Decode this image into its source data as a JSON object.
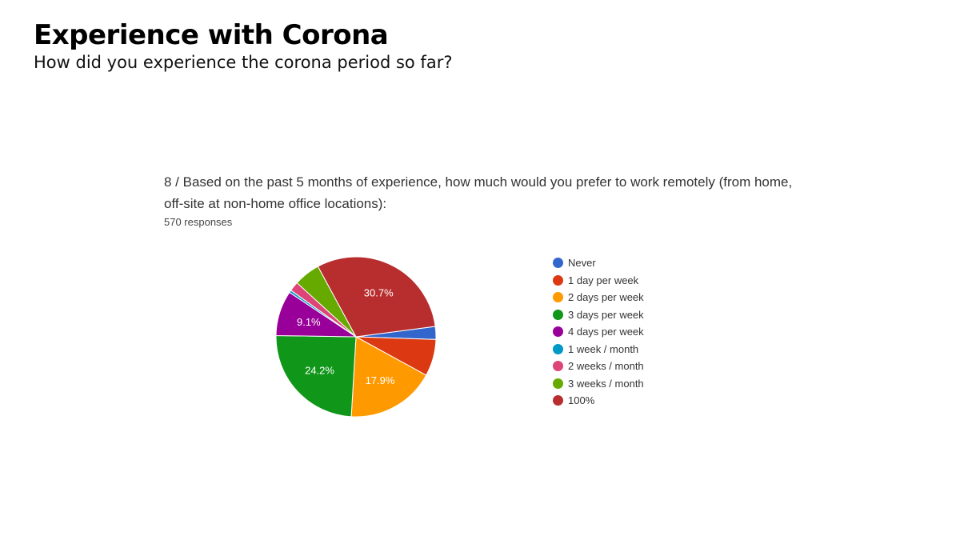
{
  "slide": {
    "title": "Experience with Corona",
    "subtitle": "How did you experience the corona period so far?"
  },
  "form": {
    "question": "8 / Based on the past 5 months of experience, how much would you prefer to work remotely (from home, off-site at non-home office locations):",
    "responses": "570 responses"
  },
  "chart_data": {
    "type": "pie",
    "title": "",
    "legend_position": "right",
    "categories": [
      "Never",
      "1 day per week",
      "2 days per week",
      "3 days per week",
      "4 days per week",
      "1 week / month",
      "2 weeks / month",
      "3 weeks / month",
      "100%"
    ],
    "values": [
      2.6,
      7.4,
      17.9,
      24.2,
      9.1,
      0.5,
      1.9,
      5.3,
      30.7
    ],
    "data_labels": [
      "",
      "",
      "17.9%",
      "24.2%",
      "9.1%",
      "",
      "",
      "",
      "30.7%"
    ],
    "colors": [
      "#3366cc",
      "#dc3912",
      "#ff9900",
      "#109618",
      "#990099",
      "#0099c6",
      "#dd4477",
      "#66aa00",
      "#b82e2e"
    ],
    "start_angle_deg": 90,
    "direction": "clockwise"
  }
}
